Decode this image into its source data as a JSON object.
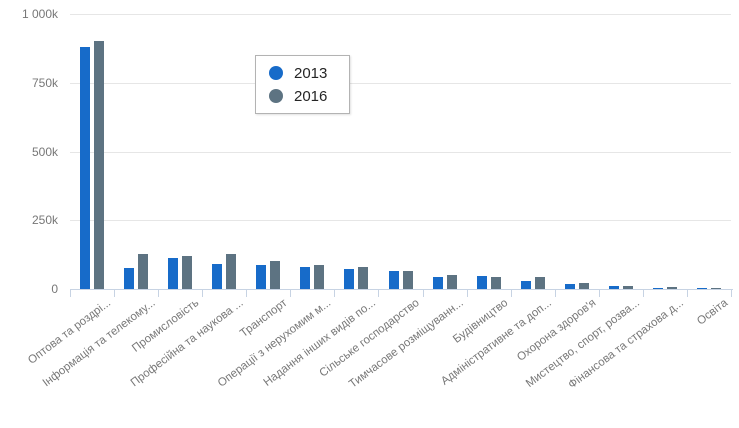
{
  "chart_data": {
    "type": "bar",
    "title": "",
    "xlabel": "",
    "ylabel": "",
    "values_unit": "thousands (k)",
    "ylim": [
      0,
      1000
    ],
    "grid": true,
    "legend_position": "upper-left-of-center, boxed",
    "y_ticks": [
      {
        "label": "1 000k",
        "value": 1000
      },
      {
        "label": "750k",
        "value": 750
      },
      {
        "label": "500k",
        "value": 500
      },
      {
        "label": "250k",
        "value": 250
      },
      {
        "label": "0",
        "value": 0
      }
    ],
    "categories": [
      "Оптова та роздрі...",
      "Інформація та телекому...",
      "Промисловість",
      "Професійна та наукова ...",
      "Транспорт",
      "Операції з нерухомим м...",
      "Надання інших видів по...",
      "Сільське господарство",
      "Тимчасове розміщуванн...",
      "Будівництво",
      "Адміністративне та доп...",
      "Охорона здоров'я",
      "Мистецтво, спорт, розва...",
      "Фінансова та страхова д...",
      "Освіта"
    ],
    "series": [
      {
        "name": "2013",
        "color": "#176BC9",
        "values": [
          880,
          77,
          113,
          92,
          86,
          80,
          72,
          64,
          44,
          48,
          30,
          18,
          12,
          4,
          4
        ]
      },
      {
        "name": "2016",
        "color": "#5D7382",
        "values": [
          900,
          127,
          120,
          128,
          100,
          86,
          80,
          66,
          52,
          42,
          42,
          22,
          10,
          8,
          2
        ]
      }
    ]
  },
  "colors": {
    "series_2013": "#176BC9",
    "series_2016": "#5D7382",
    "gridline": "#e6e6e6",
    "axis_line": "#c7d3e3",
    "tick_text": "#777777",
    "legend_text": "#252525",
    "background": "#ffffff"
  },
  "legend": {
    "items": [
      {
        "label": "2013",
        "color": "#176BC9"
      },
      {
        "label": "2016",
        "color": "#5D7382"
      }
    ]
  }
}
